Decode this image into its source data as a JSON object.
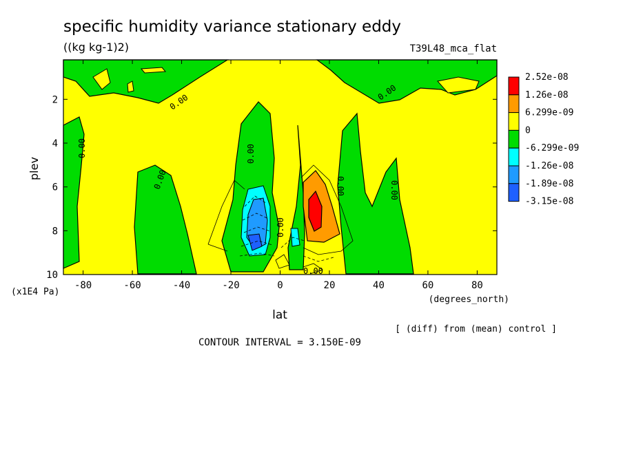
{
  "chart_data": {
    "type": "heatmap",
    "title": "specific humidity variance stationary eddy",
    "units": "((kg kg-1)2)",
    "experiment": "T39L48_mca_flat",
    "xlabel": "lat",
    "xunits": "(degrees_north)",
    "ylabel": "plev",
    "yunits": "(x1E4 Pa)",
    "xlim": [
      -88,
      88
    ],
    "ylim": [
      10,
      0.2
    ],
    "x_ticks": [
      -80,
      -60,
      -40,
      -20,
      0,
      20,
      40,
      60,
      80
    ],
    "y_ticks": [
      2,
      4,
      6,
      8,
      10
    ],
    "x_tick_labels": [
      "-80",
      "-60",
      "-40",
      "-20",
      "0",
      "20",
      "40",
      "60",
      "80"
    ],
    "y_tick_labels": [
      "2",
      "4",
      "6",
      "8",
      "10"
    ],
    "contour_interval_text": "CONTOUR INTERVAL = 3.150E-09",
    "note": "[ (diff) from (mean) control ]",
    "contour_label": "0.00",
    "legend": {
      "position": "right",
      "levels": [
        {
          "label": "2.52e-08",
          "color": "#ff0000"
        },
        {
          "label": "1.26e-08",
          "color": "#ff9b00"
        },
        {
          "label": "6.299e-09",
          "color": "#ffff00"
        },
        {
          "label": "0",
          "color": "#00dc00"
        },
        {
          "label": "-6.299e-09",
          "color": "#00ffff"
        },
        {
          "label": "-1.26e-08",
          "color": "#1f9bff"
        },
        {
          "label": "-1.89e-08",
          "color": "#1e60ff"
        },
        {
          "label": "-3.15e-08",
          "color": ""
        }
      ]
    }
  }
}
